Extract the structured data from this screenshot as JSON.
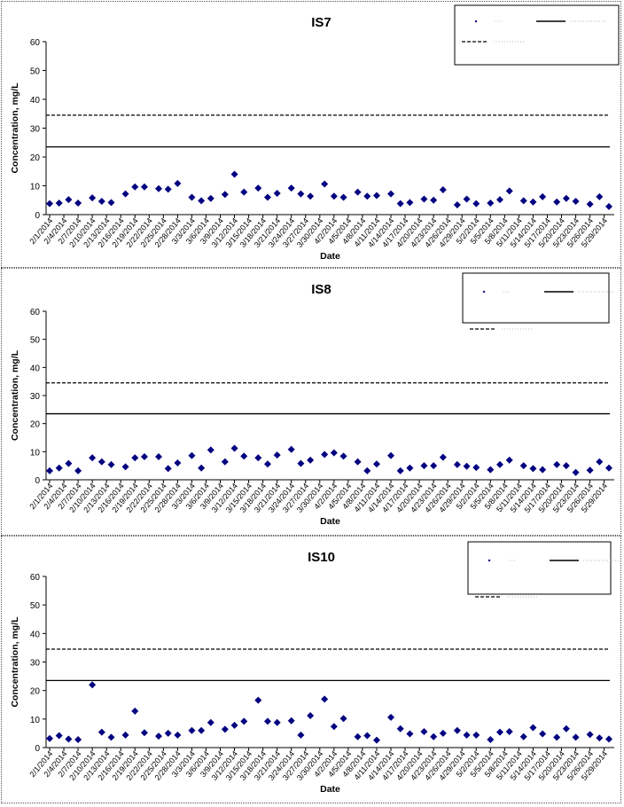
{
  "chart_data": [
    {
      "type": "scatter",
      "title": "IS7",
      "xlabel": "Date",
      "ylabel": "Concentration, mg/L",
      "ylim": [
        0,
        60
      ],
      "yticks": [
        "0",
        "10",
        "20",
        "30",
        "40",
        "50",
        "60"
      ],
      "xticks": [
        "2/1/2014",
        "2/4/2014",
        "2/7/2014",
        "2/10/2014",
        "2/13/2014",
        "2/16/2014",
        "2/19/2014",
        "2/22/2014",
        "2/25/2014",
        "2/28/2014",
        "3/3/2014",
        "3/6/2014",
        "3/9/2014",
        "3/12/2014",
        "3/15/2014",
        "3/18/2014",
        "3/21/2014",
        "3/24/2014",
        "3/27/2014",
        "3/30/2014",
        "4/2/2014",
        "4/5/2014",
        "4/8/2014",
        "4/11/2014",
        "4/14/2014",
        "4/17/2014",
        "4/20/2014",
        "4/23/2014",
        "4/26/2014",
        "4/29/2014",
        "5/2/2014",
        "5/5/2014",
        "5/8/2014",
        "5/11/2014",
        "5/14/2014",
        "5/17/2014",
        "5/20/2014",
        "5/23/2014",
        "5/26/2014",
        "5/29/2014"
      ],
      "series": [
        {
          "color": "#000080",
          "marker": "diamond",
          "x": [
            "2/1/2014",
            "2/3/2014",
            "2/5/2014",
            "2/7/2014",
            "2/10/2014",
            "2/12/2014",
            "2/14/2014",
            "2/17/2014",
            "2/19/2014",
            "2/21/2014",
            "2/24/2014",
            "2/26/2014",
            "2/28/2014",
            "3/3/2014",
            "3/5/2014",
            "3/7/2014",
            "3/10/2014",
            "3/12/2014",
            "3/14/2014",
            "3/17/2014",
            "3/19/2014",
            "3/21/2014",
            "3/24/2014",
            "3/26/2014",
            "3/28/2014",
            "3/31/2014",
            "4/2/2014",
            "4/4/2014",
            "4/7/2014",
            "4/9/2014",
            "4/11/2014",
            "4/14/2014",
            "4/16/2014",
            "4/18/2014",
            "4/21/2014",
            "4/23/2014",
            "4/25/2014",
            "4/28/2014",
            "4/30/2014",
            "5/2/2014",
            "5/5/2014",
            "5/7/2014",
            "5/9/2014",
            "5/12/2014",
            "5/14/2014",
            "5/16/2014",
            "5/19/2014",
            "5/21/2014",
            "5/23/2014",
            "5/26/2014",
            "5/28/2014",
            "5/30/2014"
          ],
          "y": [
            3.8,
            4.0,
            5.2,
            4.0,
            5.8,
            4.6,
            4.2,
            7.2,
            9.6,
            9.6,
            9.0,
            8.8,
            10.8,
            6.0,
            4.8,
            5.6,
            7.0,
            14.0,
            7.8,
            9.2,
            6.0,
            7.4,
            9.2,
            7.2,
            6.4,
            10.6,
            6.4,
            6.0,
            7.8,
            6.4,
            6.6,
            7.2,
            3.8,
            4.2,
            5.4,
            5.0,
            8.6,
            3.4,
            5.4,
            3.8,
            4.0,
            5.2,
            8.2,
            4.8,
            4.4,
            6.2,
            4.4,
            5.6,
            4.6,
            3.6,
            6.2,
            2.8
          ]
        },
        {
          "style": "solid",
          "y": 23.5
        },
        {
          "style": "dashed",
          "y": 34.5
        }
      ],
      "legend": {
        "position": "top-right"
      }
    },
    {
      "type": "scatter",
      "title": "IS8",
      "xlabel": "Date",
      "ylabel": "Concentration, mg/L",
      "ylim": [
        0,
        60
      ],
      "yticks": [
        "0",
        "10",
        "20",
        "30",
        "40",
        "50",
        "60"
      ],
      "xticks": [
        "2/1/2014",
        "2/4/2014",
        "2/7/2014",
        "2/10/2014",
        "2/13/2014",
        "2/16/2014",
        "2/19/2014",
        "2/22/2014",
        "2/25/2014",
        "2/28/2014",
        "3/3/2014",
        "3/6/2014",
        "3/9/2014",
        "3/12/2014",
        "3/15/2014",
        "3/18/2014",
        "3/21/2014",
        "3/24/2014",
        "3/27/2014",
        "3/30/2014",
        "4/2/2014",
        "4/5/2014",
        "4/8/2014",
        "4/11/2014",
        "4/14/2014",
        "4/17/2014",
        "4/20/2014",
        "4/23/2014",
        "4/26/2014",
        "4/29/2014",
        "5/2/2014",
        "5/5/2014",
        "5/8/2014",
        "5/11/2014",
        "5/14/2014",
        "5/17/2014",
        "5/20/2014",
        "5/23/2014",
        "5/26/2014",
        "5/29/2014"
      ],
      "series": [
        {
          "color": "#000080",
          "marker": "diamond",
          "x": [
            "2/1/2014",
            "2/3/2014",
            "2/5/2014",
            "2/7/2014",
            "2/10/2014",
            "2/12/2014",
            "2/14/2014",
            "2/17/2014",
            "2/19/2014",
            "2/21/2014",
            "2/24/2014",
            "2/26/2014",
            "2/28/2014",
            "3/3/2014",
            "3/5/2014",
            "3/7/2014",
            "3/10/2014",
            "3/12/2014",
            "3/14/2014",
            "3/17/2014",
            "3/19/2014",
            "3/21/2014",
            "3/24/2014",
            "3/26/2014",
            "3/28/2014",
            "3/31/2014",
            "4/2/2014",
            "4/4/2014",
            "4/7/2014",
            "4/9/2014",
            "4/11/2014",
            "4/14/2014",
            "4/16/2014",
            "4/18/2014",
            "4/21/2014",
            "4/23/2014",
            "4/25/2014",
            "4/28/2014",
            "4/30/2014",
            "5/2/2014",
            "5/5/2014",
            "5/7/2014",
            "5/9/2014",
            "5/12/2014",
            "5/14/2014",
            "5/16/2014",
            "5/19/2014",
            "5/21/2014",
            "5/23/2014",
            "5/26/2014",
            "5/28/2014",
            "5/30/2014"
          ],
          "y": [
            3.2,
            4.2,
            5.8,
            3.2,
            7.8,
            6.4,
            5.4,
            4.6,
            7.8,
            8.2,
            8.2,
            4.0,
            6.0,
            8.6,
            4.2,
            10.6,
            6.4,
            11.2,
            8.4,
            7.8,
            5.6,
            8.8,
            10.8,
            5.8,
            7.0,
            9.0,
            9.6,
            8.4,
            6.4,
            3.2,
            5.6,
            8.6,
            3.2,
            4.2,
            5.0,
            5.0,
            8.0,
            5.4,
            4.8,
            4.4,
            3.6,
            5.4,
            7.0,
            5.0,
            4.0,
            3.6,
            5.4,
            5.0,
            2.6,
            3.4,
            6.4,
            4.2
          ]
        },
        {
          "style": "solid",
          "y": 23.5
        },
        {
          "style": "dashed",
          "y": 34.5
        }
      ],
      "legend": {
        "position": "top-right"
      }
    },
    {
      "type": "scatter",
      "title": "IS10",
      "xlabel": "Date",
      "ylabel": "Concentration, mg/L",
      "ylim": [
        0,
        60
      ],
      "yticks": [
        "0",
        "10",
        "20",
        "30",
        "40",
        "50",
        "60"
      ],
      "xticks": [
        "2/1/2014",
        "2/4/2014",
        "2/7/2014",
        "2/10/2014",
        "2/13/2014",
        "2/16/2014",
        "2/19/2014",
        "2/22/2014",
        "2/25/2014",
        "2/28/2014",
        "3/3/2014",
        "3/6/2014",
        "3/9/2014",
        "3/12/2014",
        "3/15/2014",
        "3/18/2014",
        "3/21/2014",
        "3/24/2014",
        "3/27/2014",
        "3/30/2014",
        "4/2/2014",
        "4/5/2014",
        "4/8/2014",
        "4/11/2014",
        "4/14/2014",
        "4/17/2014",
        "4/20/2014",
        "4/23/2014",
        "4/26/2014",
        "4/29/2014",
        "5/2/2014",
        "5/5/2014",
        "5/8/2014",
        "5/11/2014",
        "5/14/2014",
        "5/17/2014",
        "5/20/2014",
        "5/23/2014",
        "5/26/2014",
        "5/29/2014"
      ],
      "series": [
        {
          "color": "#000080",
          "marker": "diamond",
          "x": [
            "2/1/2014",
            "2/3/2014",
            "2/5/2014",
            "2/7/2014",
            "2/10/2014",
            "2/12/2014",
            "2/14/2014",
            "2/17/2014",
            "2/19/2014",
            "2/21/2014",
            "2/24/2014",
            "2/26/2014",
            "2/28/2014",
            "3/3/2014",
            "3/5/2014",
            "3/7/2014",
            "3/10/2014",
            "3/12/2014",
            "3/14/2014",
            "3/17/2014",
            "3/19/2014",
            "3/21/2014",
            "3/24/2014",
            "3/26/2014",
            "3/28/2014",
            "3/31/2014",
            "4/2/2014",
            "4/4/2014",
            "4/7/2014",
            "4/9/2014",
            "4/11/2014",
            "4/14/2014",
            "4/16/2014",
            "4/18/2014",
            "4/21/2014",
            "4/23/2014",
            "4/25/2014",
            "4/28/2014",
            "4/30/2014",
            "5/2/2014",
            "5/5/2014",
            "5/7/2014",
            "5/9/2014",
            "5/12/2014",
            "5/14/2014",
            "5/16/2014",
            "5/19/2014",
            "5/21/2014",
            "5/23/2014",
            "5/26/2014",
            "5/28/2014",
            "5/30/2014"
          ],
          "y": [
            3.2,
            4.2,
            3.0,
            2.8,
            22.0,
            5.4,
            3.6,
            4.4,
            12.8,
            5.2,
            4.0,
            5.0,
            4.4,
            6.0,
            6.0,
            8.8,
            6.4,
            7.8,
            9.2,
            16.6,
            9.2,
            8.8,
            9.4,
            4.4,
            11.2,
            17.0,
            7.4,
            10.2,
            3.8,
            4.2,
            2.6,
            10.6,
            6.6,
            4.8,
            5.6,
            3.8,
            5.0,
            6.0,
            4.4,
            4.4,
            2.8,
            5.4,
            5.6,
            3.8,
            7.0,
            4.8,
            3.6,
            6.6,
            3.6,
            4.6,
            3.4,
            3.0
          ]
        },
        {
          "style": "solid",
          "y": 23.5
        },
        {
          "style": "dashed",
          "y": 34.5
        }
      ],
      "legend": {
        "position": "top-right"
      }
    }
  ]
}
